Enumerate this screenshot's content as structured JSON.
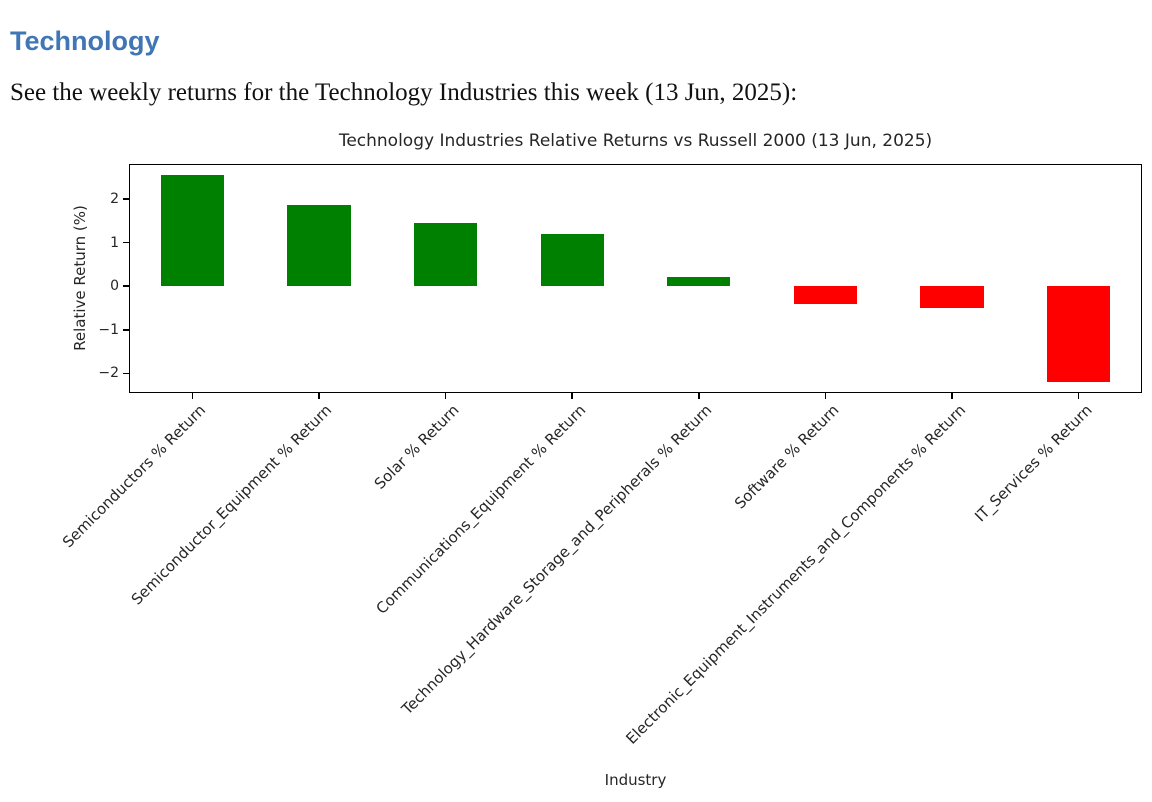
{
  "page": {
    "heading": "Technology",
    "heading_color": "#4076b4",
    "subtitle": "See the weekly returns for the Technology Industries this week (13 Jun, 2025):"
  },
  "chart_data": {
    "type": "bar",
    "title": "Technology Industries Relative Returns vs Russell 2000 (13 Jun, 2025)",
    "xlabel": "Industry",
    "ylabel": "Relative Return (%)",
    "categories": [
      "Semiconductors % Return",
      "Semiconductor_Equipment % Return",
      "Solar % Return",
      "Communications_Equipment % Return",
      "Technology_Hardware_Storage_and_Peripherals % Return",
      "Software % Return",
      "Electronic_Equipment_Instruments_and_Components % Return",
      "IT_Services % Return"
    ],
    "values": [
      2.55,
      1.85,
      1.45,
      1.2,
      0.2,
      -0.4,
      -0.5,
      -2.2
    ],
    "positive_color": "#008000",
    "negative_color": "#ff0000",
    "yticks": [
      2,
      1,
      0,
      -1,
      -2
    ],
    "ylim": [
      -2.45,
      2.8
    ],
    "grid": false,
    "legend": "none",
    "bar_width_fraction": 0.5
  }
}
